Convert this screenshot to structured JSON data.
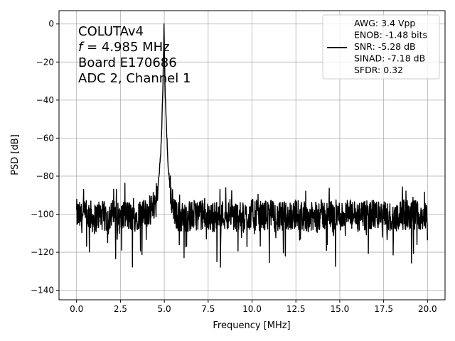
{
  "chart_data": {
    "type": "line",
    "xlabel": "Frequency [MHz]",
    "ylabel": "PSD [dB]",
    "xlim": [
      -1,
      21
    ],
    "ylim": [
      -145,
      7
    ],
    "xticks": [
      0.0,
      2.5,
      5.0,
      7.5,
      10.0,
      12.5,
      15.0,
      17.5,
      20.0
    ],
    "xtick_labels": [
      "0.0",
      "2.5",
      "5.0",
      "7.5",
      "10.0",
      "12.5",
      "15.0",
      "17.5",
      "20.0"
    ],
    "yticks": [
      0,
      -20,
      -40,
      -60,
      -80,
      -100,
      -120,
      -140
    ],
    "ytick_labels": [
      "0",
      "−20",
      "−40",
      "−60",
      "−80",
      "−100",
      "−120",
      "−140"
    ],
    "grid": true,
    "legend_placement": "top-right",
    "line_color": "#000000",
    "annotation": {
      "line1": "COLUTAv4",
      "line2_var": "f",
      "line2_rest": " = 4.985 MHz",
      "line3": "Board E170686",
      "line4": "ADC 2, Channel 1"
    },
    "legend": {
      "entries": [
        "AWG: 3.4 Vpp",
        "ENOB: -1.48 bits",
        "SNR: -5.28 dB",
        "SINAD: -7.18 dB",
        "SFDR: 0.32"
      ]
    },
    "series": [
      {
        "x": [
          0,
          0.25,
          0.5,
          0.75,
          1.0,
          1.25,
          1.5,
          1.75,
          2.0,
          2.25,
          2.5,
          2.75,
          3.0,
          3.25,
          3.5,
          3.75,
          4.0,
          4.25,
          4.5,
          4.6,
          4.7,
          4.8,
          4.85,
          4.9,
          4.95,
          4.985,
          5.02,
          5.08,
          5.15,
          5.2,
          5.3,
          5.4,
          5.5,
          5.6,
          5.75,
          6.0,
          6.5,
          7.0,
          7.5,
          8.0,
          8.5,
          9.0,
          9.5,
          10.0,
          10.5,
          11.0,
          11.5,
          12.0,
          12.5,
          13.0,
          13.5,
          14.0,
          14.3,
          14.55,
          14.65,
          14.8,
          15.0,
          15.5,
          16.0,
          16.5,
          17.0,
          17.5,
          18.0,
          18.5,
          19.0,
          19.5,
          20.0
        ],
        "y": [
          -100,
          -102,
          -101,
          -100,
          -103,
          -100,
          -101,
          -102,
          -100,
          -101,
          -103,
          -100,
          -101,
          -102,
          -100,
          -101,
          -99,
          -98,
          -93,
          -87,
          -80,
          -68,
          -55,
          -40,
          -20,
          0,
          -24,
          -45,
          -60,
          -72,
          -83,
          -91,
          -96,
          -100,
          -101,
          -102,
          -101,
          -100,
          -102,
          -101,
          -100,
          -101,
          -102,
          -100,
          -101,
          -100,
          -102,
          -101,
          -100,
          -101,
          -102,
          -100,
          -101,
          -100,
          -104,
          -100,
          -101,
          -100,
          -102,
          -101,
          -100,
          -101,
          -102,
          -100,
          -101,
          -100,
          -102
        ]
      }
    ]
  }
}
